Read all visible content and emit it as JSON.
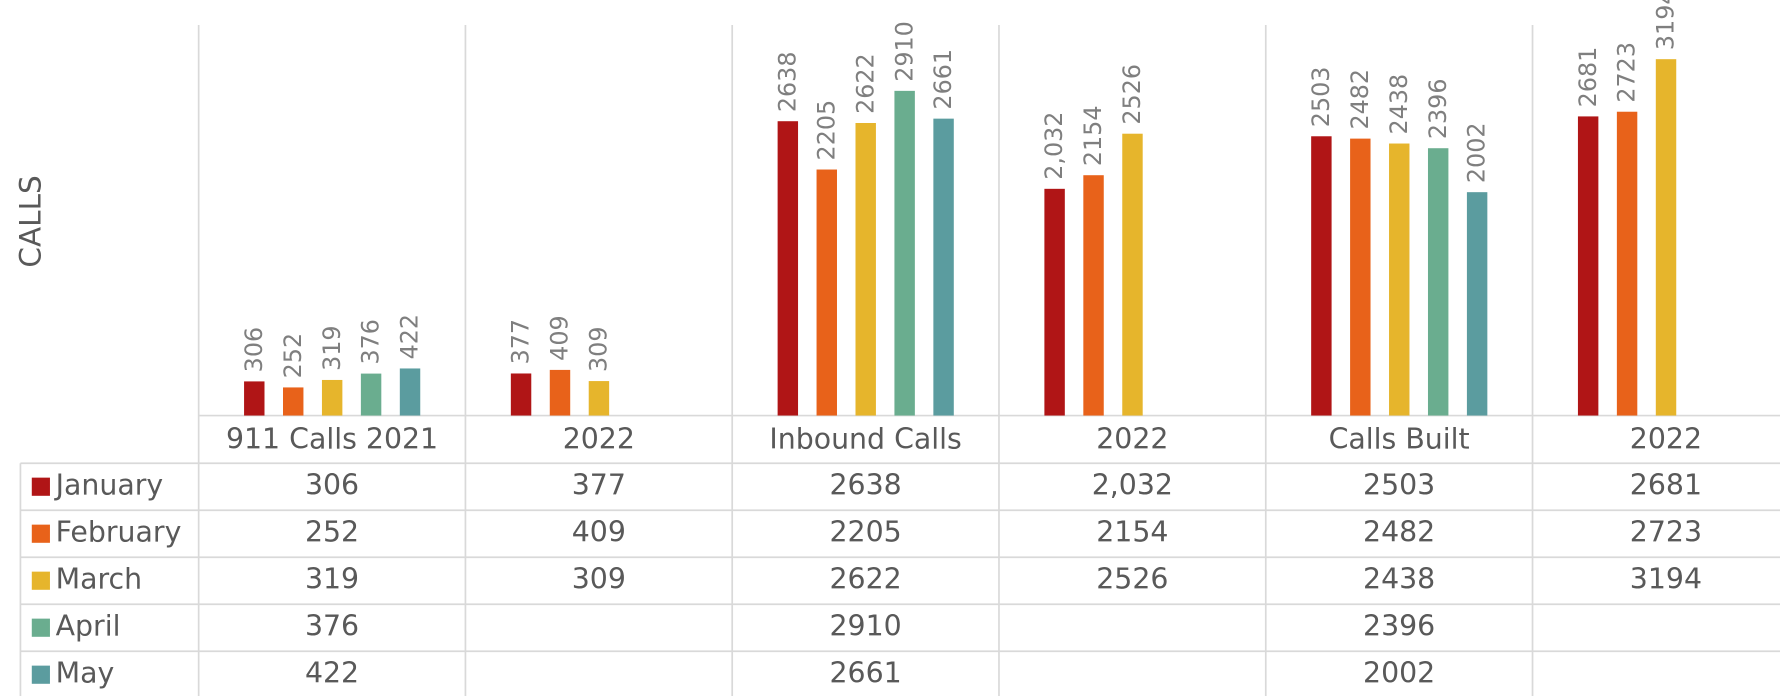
{
  "chart_data": {
    "type": "bar",
    "ylabel": "CALLS",
    "categories": [
      "911 Calls 2021",
      "2022",
      "Inbound Calls",
      "2022",
      "Calls Built",
      "2022"
    ],
    "series": [
      {
        "name": "January",
        "color": "#b01516",
        "values": [
          306,
          377,
          2638,
          2032,
          2503,
          2681
        ],
        "value_labels": [
          "306",
          "377",
          "2638",
          "2,032",
          "2503",
          "2681"
        ]
      },
      {
        "name": "February",
        "color": "#e8621a",
        "values": [
          252,
          409,
          2205,
          2154,
          2482,
          2723
        ]
      },
      {
        "name": "March",
        "color": "#e6b52c",
        "values": [
          319,
          309,
          2622,
          2526,
          2438,
          3194
        ]
      },
      {
        "name": "April",
        "color": "#6aad8f",
        "values": [
          376,
          null,
          2910,
          null,
          2396,
          null
        ]
      },
      {
        "name": "May",
        "color": "#5b9c9f",
        "values": [
          422,
          null,
          2661,
          null,
          2002,
          null
        ]
      }
    ],
    "ylim": [
      0,
      3500
    ],
    "data_table": true
  }
}
